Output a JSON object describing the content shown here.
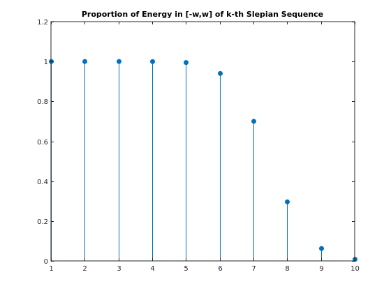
{
  "chart_data": {
    "type": "stem",
    "title": "Proportion of Energy in [-w,w] of k-th Slepian Sequence",
    "xlabel": "",
    "ylabel": "",
    "x": [
      1,
      2,
      3,
      4,
      5,
      6,
      7,
      8,
      9,
      10
    ],
    "values": [
      1.0,
      1.0,
      1.0,
      0.9998,
      0.995,
      0.94,
      0.7,
      0.296,
      0.062,
      0.008
    ],
    "xlim": [
      1,
      10
    ],
    "ylim": [
      0,
      1.2
    ],
    "xticks": [
      "1",
      "2",
      "3",
      "4",
      "5",
      "6",
      "7",
      "8",
      "9",
      "10"
    ],
    "yticks": [
      "0",
      "0.2",
      "0.4",
      "0.6",
      "0.8",
      "1",
      "1.2"
    ],
    "ytick_values": [
      0,
      0.2,
      0.4,
      0.6,
      0.8,
      1.0,
      1.2
    ],
    "grid": false,
    "box": true,
    "series_color": "#0072BD",
    "axis_color": "#262626"
  }
}
